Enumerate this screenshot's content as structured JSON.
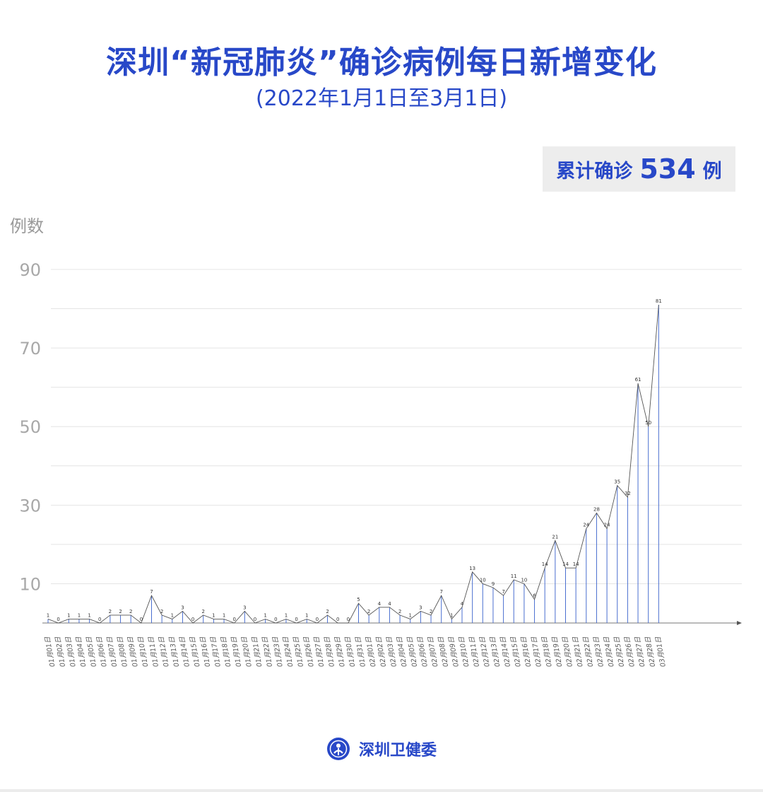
{
  "title": "深圳“新冠肺炎”确诊病例每日新增变化",
  "subtitle": "(2022年1月1日至3月1日)",
  "total": {
    "label": "累计确诊",
    "value": "534",
    "unit": "例"
  },
  "footer": {
    "org": "深圳卫健委"
  },
  "colors": {
    "accent": "#2848c8",
    "bar": "#4a6fd0",
    "line": "#555555",
    "grid": "#e4e4e4"
  },
  "chart_data": {
    "type": "line",
    "ylabel": "例数",
    "ylim": [
      0,
      90
    ],
    "yticks": [
      10,
      30,
      50,
      70,
      90
    ],
    "grid": true,
    "categories": [
      "01月01日",
      "01月02日",
      "01月03日",
      "01月04日",
      "01月05日",
      "01月06日",
      "01月07日",
      "01月08日",
      "01月09日",
      "01月10日",
      "01月11日",
      "01月12日",
      "01月13日",
      "01月14日",
      "01月15日",
      "01月16日",
      "01月17日",
      "01月18日",
      "01月19日",
      "01月20日",
      "01月21日",
      "01月22日",
      "01月23日",
      "01月24日",
      "01月25日",
      "01月26日",
      "01月27日",
      "01月28日",
      "01月29日",
      "01月30日",
      "01月31日",
      "02月01日",
      "02月02日",
      "02月03日",
      "02月04日",
      "02月05日",
      "02月06日",
      "02月07日",
      "02月08日",
      "02月09日",
      "02月10日",
      "02月11日",
      "02月12日",
      "02月13日",
      "02月14日",
      "02月15日",
      "02月16日",
      "02月17日",
      "02月18日",
      "02月19日",
      "02月20日",
      "02月21日",
      "02月22日",
      "02月23日",
      "02月24日",
      "02月25日",
      "02月26日",
      "02月27日",
      "02月28日",
      "03月01日"
    ],
    "values": [
      1,
      0,
      1,
      1,
      1,
      0,
      2,
      2,
      2,
      0,
      7,
      2,
      1,
      3,
      0,
      2,
      1,
      1,
      0,
      3,
      0,
      1,
      0,
      1,
      0,
      1,
      0,
      2,
      0,
      0,
      5,
      2,
      4,
      4,
      2,
      1,
      3,
      2,
      7,
      1,
      4,
      13,
      10,
      9,
      7,
      11,
      10,
      6,
      14,
      21,
      14,
      14,
      24,
      28,
      24,
      35,
      32,
      61,
      50,
      81
    ]
  }
}
